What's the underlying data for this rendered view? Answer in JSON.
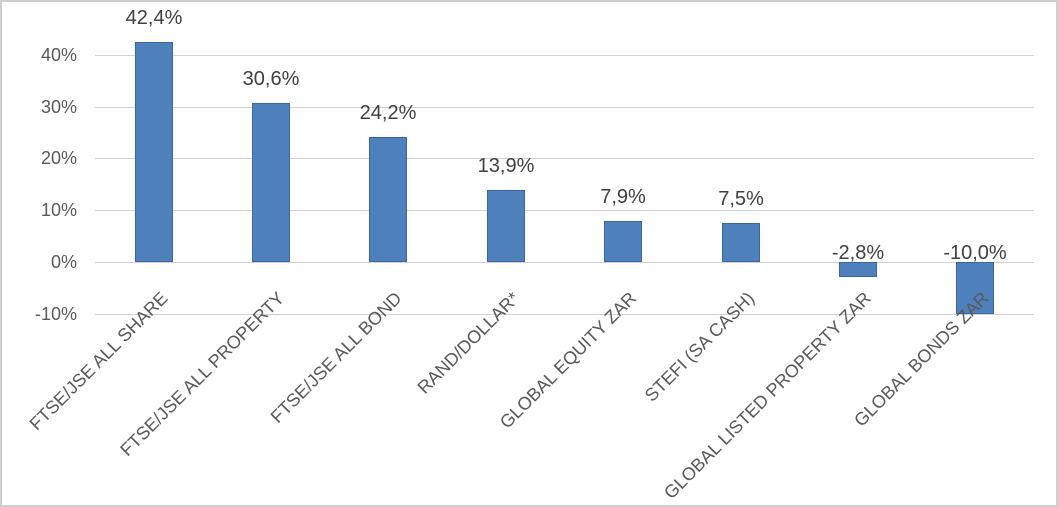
{
  "chart_data": {
    "type": "bar",
    "title": "",
    "xlabel": "",
    "ylabel": "",
    "legend": "none",
    "grid": true,
    "categories": [
      "FTSE/JSE ALL SHARE",
      "FTSE/JSE ALL PROPERTY",
      "FTSE/JSE ALL BOND",
      "RAND/DOLLAR*",
      "GLOBAL EQUITY ZAR",
      "STEFI (SA CASH)",
      "GLOBAL LISTED PROPERTY ZAR",
      "GLOBAL BONDS ZAR"
    ],
    "values": [
      42.4,
      30.6,
      24.2,
      13.9,
      7.9,
      7.5,
      -2.8,
      -10.0
    ],
    "value_labels": [
      "42,4%",
      "30,6%",
      "24,2%",
      "13,9%",
      "7,9%",
      "7,5%",
      "-2,8%",
      "-10,0%"
    ],
    "y_axis": {
      "min": -10,
      "max": 40,
      "tick_values": [
        40,
        30,
        20,
        10,
        0,
        -10
      ],
      "tick_labels": [
        "40%",
        "30%",
        "20%",
        "10%",
        "0%",
        "-10%"
      ]
    },
    "colors": {
      "bar_fill": "#4e81bb",
      "bar_border": "#39679f",
      "gridline": "#d2d2d2",
      "value_label_text": "#404040",
      "axis_text": "#595959",
      "background": "#ffffff"
    }
  }
}
